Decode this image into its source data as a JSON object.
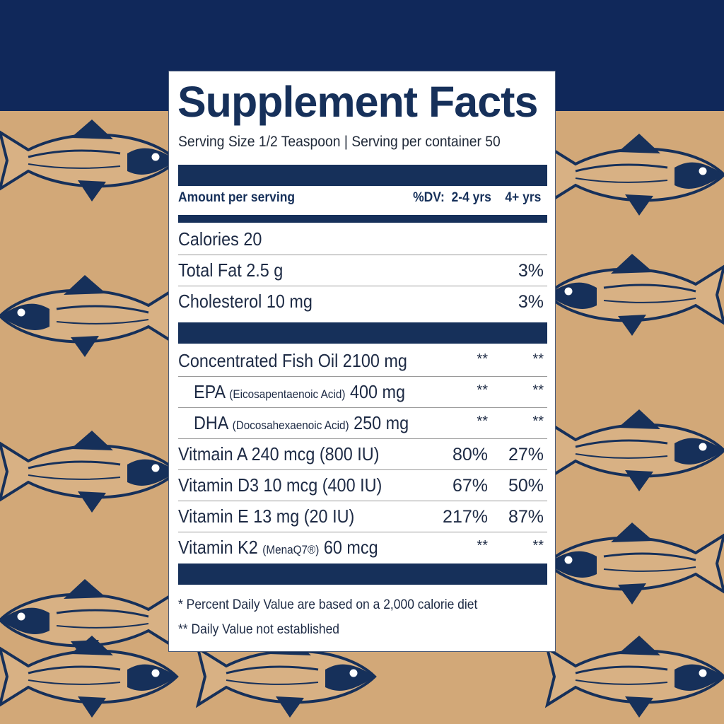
{
  "colors": {
    "navy": "#16305a",
    "kraft": "#d2a878"
  },
  "background": {
    "pattern": "fish-illustration"
  },
  "label": {
    "title": "Supplement Facts",
    "serving": "Serving Size 1/2 Teaspoon  |  Serving per container 50",
    "header": {
      "amount": "Amount per serving",
      "dv": "%DV:  2-4 yrs    4+ yrs"
    },
    "rows": [
      {
        "label": "Calories 20",
        "sub": "",
        "after": "",
        "c1": "",
        "c2": ""
      },
      {
        "label": "Total Fat 2.5 g",
        "sub": "",
        "after": "",
        "c1": "",
        "c2": "3%"
      },
      {
        "label": "Cholesterol 10 mg",
        "sub": "",
        "after": "",
        "c1": "",
        "c2": "3%"
      }
    ],
    "rows2": [
      {
        "label": "Concentrated Fish Oil 2100 mg",
        "sub": "",
        "after": "",
        "c1": "**",
        "c2": "**"
      },
      {
        "label": "EPA ",
        "sub": "(Eicosapentaenoic Acid)",
        "after": " 400 mg",
        "c1": "**",
        "c2": "**"
      },
      {
        "label": "DHA ",
        "sub": "(Docosahexaenoic Acid)",
        "after": " 250 mg",
        "c1": "**",
        "c2": "**"
      },
      {
        "label": "Vitmain A 240 mcg (800 IU)",
        "sub": "",
        "after": "",
        "c1": "80%",
        "c2": "27%"
      },
      {
        "label": "Vitamin D3 10 mcg (400 IU)",
        "sub": "",
        "after": "",
        "c1": "67%",
        "c2": "50%"
      },
      {
        "label": "Vitamin E 13 mg (20 IU)",
        "sub": "",
        "after": "",
        "c1": "217%",
        "c2": "87%"
      },
      {
        "label": "Vitamin K2 ",
        "sub": "(MenaQ7®)",
        "after": " 60 mcg",
        "c1": "**",
        "c2": "**"
      }
    ],
    "footnotes": [
      "* Percent Daily Value are based on a 2,000 calorie diet",
      "** Daily Value not established"
    ]
  }
}
